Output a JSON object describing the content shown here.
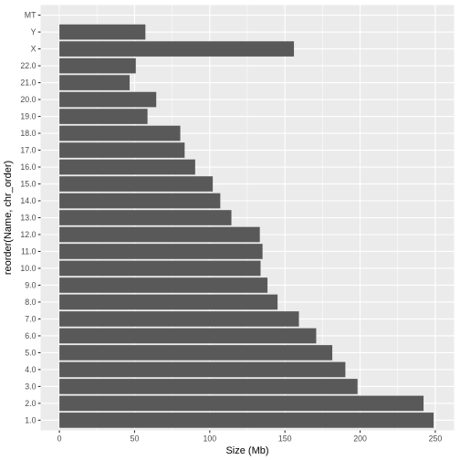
{
  "chart_data": {
    "type": "bar",
    "orientation": "horizontal",
    "xlabel": "Size (Mb)",
    "ylabel": "reorder(Name, chr_order)",
    "xlim": [
      0,
      250
    ],
    "x_ticks": [
      "0",
      "50",
      "100",
      "150",
      "200",
      "250"
    ],
    "x_tick_values": [
      0,
      50,
      100,
      150,
      200,
      250
    ],
    "categories": [
      "1.0",
      "2.0",
      "3.0",
      "4.0",
      "5.0",
      "6.0",
      "7.0",
      "8.0",
      "9.0",
      "10.0",
      "11.0",
      "12.0",
      "13.0",
      "14.0",
      "15.0",
      "16.0",
      "17.0",
      "18.0",
      "19.0",
      "20.0",
      "21.0",
      "22.0",
      "X",
      "Y",
      "MT"
    ],
    "values": [
      248.9,
      242.2,
      198.3,
      190.2,
      181.5,
      170.8,
      159.3,
      145.1,
      138.4,
      133.8,
      135.1,
      133.3,
      114.4,
      107.0,
      102.0,
      90.3,
      83.3,
      80.4,
      58.6,
      64.4,
      46.7,
      50.8,
      156.0,
      57.2,
      0.02
    ],
    "grid": true,
    "legend": "none",
    "colors": {
      "panel_background": "#ebebeb",
      "grid_major": "#ffffff",
      "bar_fill": "#595959",
      "tick_text": "#4d4d4d",
      "axis_title": "#000000"
    }
  }
}
